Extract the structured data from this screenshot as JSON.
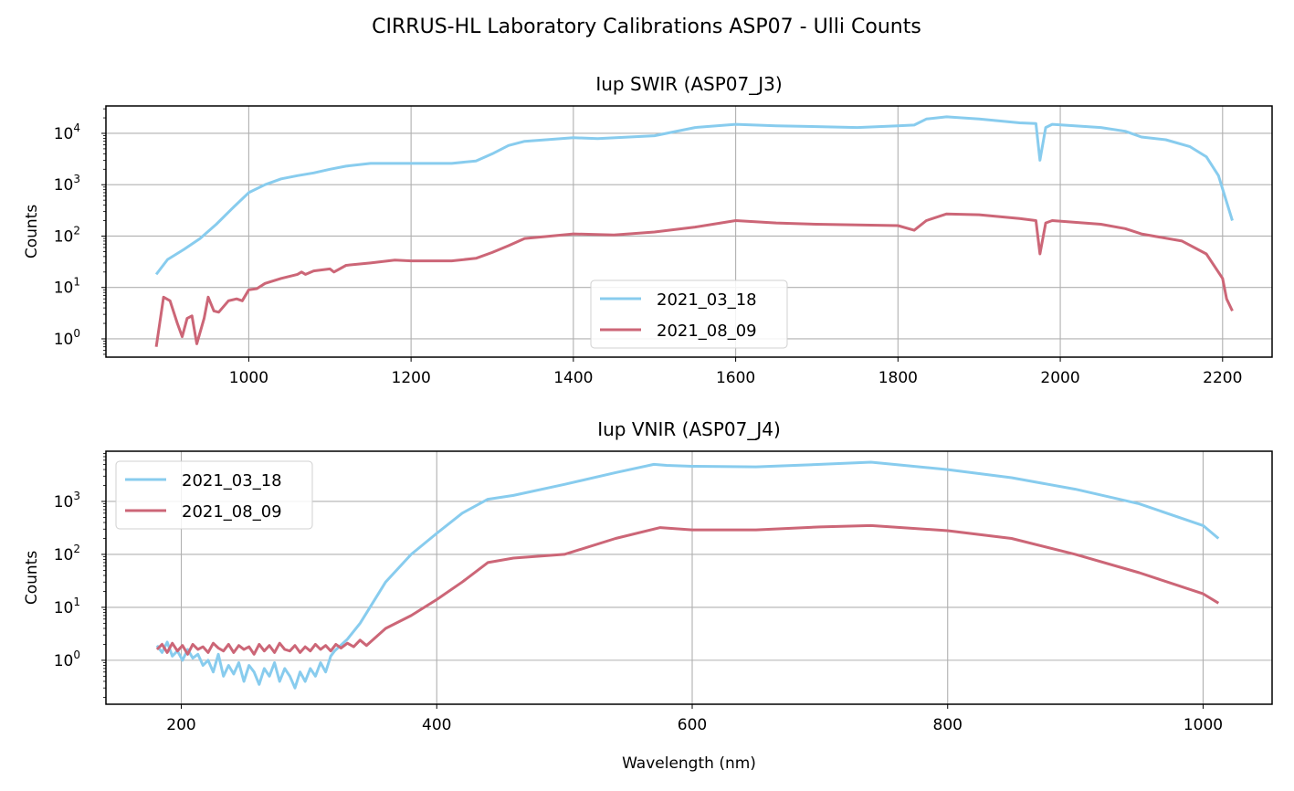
{
  "suptitle": "CIRRUS-HL Laboratory Calibrations ASP07 - Ulli Counts",
  "colors": {
    "2021_03_18": "#88ccee",
    "2021_08_09": "#cc6677",
    "grid": "#b0b0b0"
  },
  "chart_data": [
    {
      "type": "line",
      "title": "Iup SWIR (ASP07_J3)",
      "xlabel": "",
      "ylabel": "Counts",
      "yscale": "log",
      "xlim": [
        824,
        2261
      ],
      "ylim_log10": [
        -0.356,
        4.533
      ],
      "xticks": [
        1000,
        1200,
        1400,
        1600,
        1800,
        2000,
        2200
      ],
      "yticks_exp": [
        0,
        1,
        2,
        3,
        4
      ],
      "grid": true,
      "legend": "lower center",
      "series": [
        {
          "name": "2021_03_18",
          "color": "#88ccee",
          "x": [
            886,
            900,
            920,
            940,
            960,
            980,
            1000,
            1020,
            1040,
            1060,
            1080,
            1100,
            1120,
            1150,
            1200,
            1250,
            1280,
            1300,
            1320,
            1340,
            1400,
            1430,
            1500,
            1550,
            1600,
            1650,
            1700,
            1750,
            1800,
            1820,
            1835,
            1860,
            1900,
            1950,
            1970,
            1975,
            1982,
            1990,
            2050,
            2080,
            2100,
            2130,
            2160,
            2180,
            2195,
            2212
          ],
          "y": [
            18,
            35,
            55,
            90,
            170,
            350,
            700,
            1000,
            1300,
            1500,
            1700,
            2000,
            2300,
            2600,
            2600,
            2600,
            2900,
            4000,
            5800,
            7000,
            8200,
            7900,
            9000,
            13000,
            15000,
            14000,
            13500,
            13000,
            14000,
            14500,
            19000,
            21000,
            19000,
            16000,
            15500,
            3000,
            13000,
            15000,
            13000,
            11000,
            8500,
            7500,
            5500,
            3500,
            1500,
            200
          ]
        },
        {
          "name": "2021_08_09",
          "color": "#cc6677",
          "x": [
            886,
            895,
            903,
            912,
            918,
            924,
            930,
            936,
            945,
            950,
            957,
            963,
            975,
            985,
            992,
            1000,
            1010,
            1020,
            1040,
            1060,
            1065,
            1070,
            1080,
            1100,
            1105,
            1120,
            1150,
            1180,
            1200,
            1250,
            1280,
            1300,
            1320,
            1340,
            1400,
            1450,
            1500,
            1550,
            1600,
            1650,
            1700,
            1800,
            1820,
            1835,
            1860,
            1900,
            1950,
            1970,
            1975,
            1982,
            1990,
            2050,
            2080,
            2100,
            2150,
            2180,
            2200,
            2205,
            2212
          ],
          "y": [
            0.7,
            6.5,
            5.5,
            2,
            1.1,
            2.5,
            2.8,
            0.8,
            2.5,
            6.5,
            3.5,
            3.3,
            5.5,
            6,
            5.5,
            9,
            9.5,
            12,
            15,
            18,
            20,
            18,
            21,
            23,
            20,
            27,
            30,
            34,
            33,
            33,
            37,
            48,
            65,
            90,
            110,
            105,
            120,
            150,
            200,
            180,
            170,
            160,
            130,
            200,
            270,
            260,
            220,
            200,
            45,
            180,
            200,
            170,
            140,
            110,
            80,
            45,
            15,
            6,
            3.5
          ]
        }
      ]
    },
    {
      "type": "line",
      "title": "Iup VNIR (ASP07_J4)",
      "xlabel": "Wavelength (nm)",
      "ylabel": "Counts",
      "yscale": "log",
      "xlim": [
        141,
        1054
      ],
      "ylim_log10": [
        -0.83,
        3.948
      ],
      "xticks": [
        200,
        400,
        600,
        800,
        1000
      ],
      "yticks_exp": [
        0,
        1,
        2,
        3
      ],
      "grid": true,
      "legend": "upper left",
      "series": [
        {
          "name": "2021_03_18",
          "color": "#88ccee",
          "x": [
            181,
            185,
            189,
            193,
            197,
            201,
            205,
            209,
            213,
            217,
            221,
            225,
            229,
            233,
            237,
            241,
            245,
            249,
            253,
            257,
            261,
            265,
            269,
            273,
            277,
            281,
            285,
            289,
            293,
            297,
            301,
            305,
            309,
            313,
            317,
            320,
            330,
            340,
            360,
            380,
            400,
            420,
            440,
            460,
            500,
            540,
            570,
            580,
            600,
            650,
            700,
            740,
            800,
            850,
            900,
            950,
            1000,
            1012
          ],
          "y": [
            1.9,
            1.4,
            2.2,
            1.2,
            1.5,
            1.0,
            1.6,
            1.1,
            1.3,
            0.8,
            1.0,
            0.6,
            1.3,
            0.5,
            0.8,
            0.55,
            0.9,
            0.4,
            0.8,
            0.6,
            0.35,
            0.7,
            0.5,
            0.9,
            0.4,
            0.7,
            0.5,
            0.3,
            0.6,
            0.4,
            0.7,
            0.5,
            0.9,
            0.6,
            1.2,
            1.5,
            2.5,
            5,
            30,
            100,
            250,
            600,
            1100,
            1300,
            2100,
            3500,
            5000,
            4800,
            4600,
            4500,
            5000,
            5500,
            4000,
            2800,
            1700,
            900,
            350,
            200
          ]
        },
        {
          "name": "2021_08_09",
          "color": "#cc6677",
          "x": [
            181,
            185,
            189,
            193,
            197,
            201,
            205,
            209,
            213,
            217,
            221,
            225,
            229,
            233,
            237,
            241,
            245,
            249,
            253,
            257,
            261,
            265,
            269,
            273,
            277,
            281,
            285,
            289,
            293,
            297,
            301,
            305,
            309,
            313,
            317,
            321,
            325,
            330,
            335,
            340,
            345,
            360,
            380,
            400,
            420,
            440,
            460,
            500,
            540,
            575,
            600,
            650,
            700,
            740,
            800,
            850,
            900,
            950,
            1000,
            1012
          ],
          "y": [
            1.6,
            2.0,
            1.4,
            2.1,
            1.5,
            1.9,
            1.3,
            2.0,
            1.6,
            1.8,
            1.4,
            2.1,
            1.7,
            1.5,
            2.0,
            1.4,
            1.9,
            1.6,
            1.8,
            1.3,
            2.0,
            1.5,
            1.9,
            1.4,
            2.1,
            1.6,
            1.5,
            1.9,
            1.4,
            1.8,
            1.5,
            2.0,
            1.6,
            1.9,
            1.5,
            2.0,
            1.7,
            2.1,
            1.8,
            2.4,
            1.9,
            4,
            7,
            14,
            30,
            70,
            85,
            100,
            200,
            320,
            290,
            290,
            330,
            350,
            280,
            200,
            100,
            45,
            18,
            12
          ]
        }
      ]
    }
  ]
}
